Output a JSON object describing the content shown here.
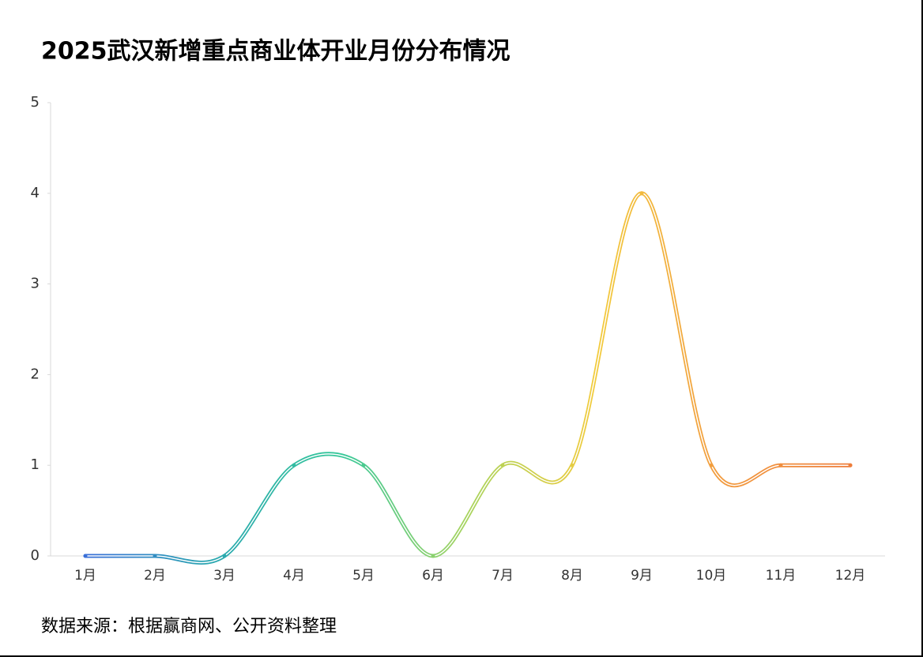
{
  "chart_data": {
    "type": "line",
    "title": "2025武汉新增重点商业体开业月份分布情况",
    "categories": [
      "1月",
      "2月",
      "3月",
      "4月",
      "5月",
      "6月",
      "7月",
      "8月",
      "9月",
      "10月",
      "11月",
      "12月"
    ],
    "values": [
      0,
      0,
      0,
      1,
      1,
      0,
      1,
      1,
      4,
      1,
      1,
      1
    ],
    "colors": [
      "#3a6fd8",
      "#2aa7b0",
      "#37c89a",
      "#a9d45e",
      "#f2cb3c",
      "#f29a3e",
      "#ee7d3a"
    ],
    "ylim": [
      0,
      5
    ],
    "yticks": [
      0,
      1,
      2,
      3,
      4,
      5
    ],
    "note": "数据来源：根据赢商网、公开资料整理"
  }
}
